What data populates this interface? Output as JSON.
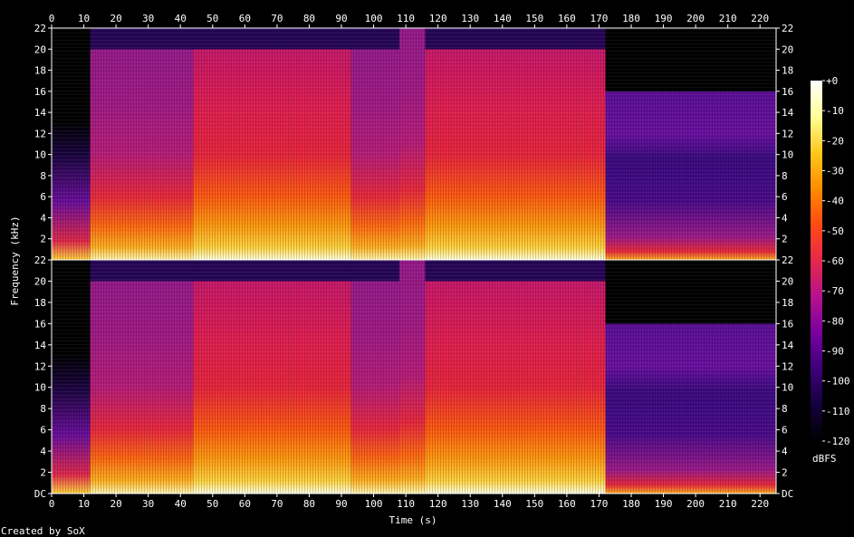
{
  "chart_data": {
    "type": "heatmap",
    "title": "",
    "xlabel": "Time (s)",
    "ylabel": "Frequency (kHz)",
    "xlim": [
      0,
      225
    ],
    "ylim_khz": [
      0,
      22
    ],
    "x_ticks": [
      0,
      10,
      20,
      30,
      40,
      50,
      60,
      70,
      80,
      90,
      100,
      110,
      120,
      130,
      140,
      150,
      160,
      170,
      180,
      190,
      200,
      210,
      220
    ],
    "y_ticks_top": [
      "2",
      "4",
      "6",
      "8",
      "10",
      "12",
      "14",
      "16",
      "18",
      "20",
      "22"
    ],
    "y_ticks_bottom": [
      "DC",
      "2",
      "4",
      "6",
      "8",
      "10",
      "12",
      "14",
      "16",
      "18",
      "20",
      "22"
    ],
    "y_tick_values_top": [
      2,
      4,
      6,
      8,
      10,
      12,
      14,
      16,
      18,
      20,
      22
    ],
    "y_tick_values_bottom": [
      0,
      2,
      4,
      6,
      8,
      10,
      12,
      14,
      16,
      18,
      20,
      22
    ],
    "channels": 2,
    "colorbar": {
      "label": "dBFS",
      "ticks": [
        "+0",
        "-10",
        "-20",
        "-30",
        "-40",
        "-50",
        "-60",
        "-70",
        "-80",
        "-90",
        "-100",
        "-110",
        "-120"
      ],
      "tick_values": [
        0,
        -10,
        -20,
        -30,
        -40,
        -50,
        -60,
        -70,
        -80,
        -90,
        -100,
        -110,
        -120
      ],
      "range": [
        -120,
        0
      ]
    },
    "segments": [
      {
        "start": 0,
        "end": 12,
        "level": "fade-in"
      },
      {
        "start": 12,
        "end": 44,
        "level": "high",
        "cutoff_khz": 20
      },
      {
        "start": 44,
        "end": 93,
        "level": "very-high",
        "cutoff_khz": 20
      },
      {
        "start": 93,
        "end": 108,
        "level": "high",
        "cutoff_khz": 20
      },
      {
        "start": 108,
        "end": 116,
        "level": "sparse"
      },
      {
        "start": 116,
        "end": 172,
        "level": "very-high",
        "cutoff_khz": 20
      },
      {
        "start": 172,
        "end": 225,
        "level": "low",
        "cutoff_khz": 16
      }
    ],
    "palette": [
      "#000000",
      "#14003c",
      "#3c0078",
      "#7800a0",
      "#b4128c",
      "#e6284b",
      "#ff4a14",
      "#ff8c00",
      "#ffc81e",
      "#ffff96",
      "#ffffff"
    ]
  },
  "footer": {
    "credit": "Created by SoX"
  }
}
